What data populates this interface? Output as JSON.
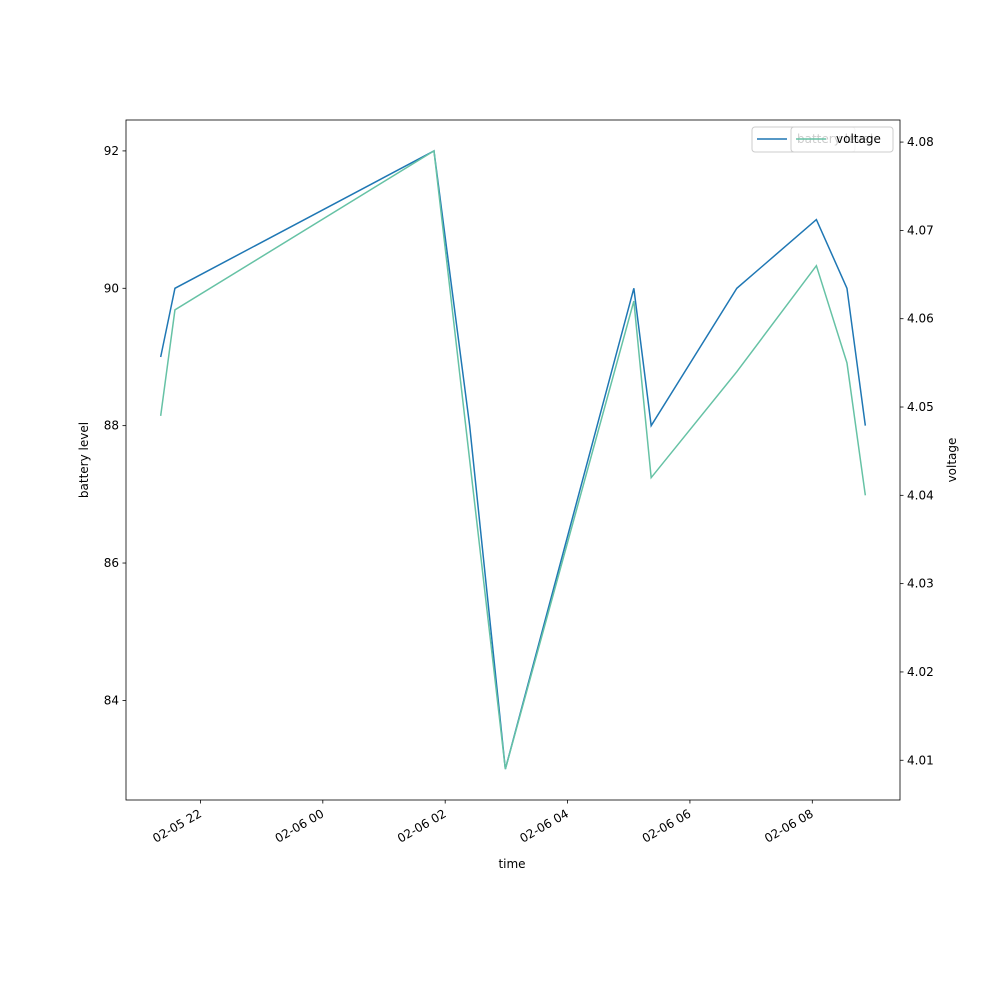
{
  "chart_data": {
    "type": "line",
    "xlabel": "time",
    "ylabel": "battery level",
    "y2label": "voltage",
    "x": [
      "02-05 21:21",
      "02-05 21:35",
      "02-06 01:49",
      "02-06 02:24",
      "02-06 02:59",
      "02-06 05:05",
      "02-06 05:22",
      "02-06 06:46",
      "02-06 08:04",
      "02-06 08:34",
      "02-06 08:52"
    ],
    "series": [
      {
        "name": "battery level",
        "color": "#1f77b4",
        "values": [
          89,
          90,
          92,
          88,
          83,
          90,
          88,
          90,
          91,
          90,
          88
        ]
      },
      {
        "name": "voltage",
        "color": "#66c2a5",
        "axis": "y2",
        "values": [
          4.049,
          4.061,
          4.079,
          4.044,
          4.009,
          4.062,
          4.042,
          4.054,
          4.066,
          4.055,
          4.04
        ]
      }
    ],
    "xlim": [
      "02-05 20:47",
      "02-06 09:26"
    ],
    "xticks": [
      {
        "value": "02-05 22:00",
        "label": "02-05 22"
      },
      {
        "value": "02-06 00:00",
        "label": "02-06 00"
      },
      {
        "value": "02-06 02:00",
        "label": "02-06 02"
      },
      {
        "value": "02-06 04:00",
        "label": "02-06 04"
      },
      {
        "value": "02-06 06:00",
        "label": "02-06 06"
      },
      {
        "value": "02-06 08:00",
        "label": "02-06 08"
      }
    ],
    "ylim": [
      82.55,
      92.45
    ],
    "yticks": [
      84,
      86,
      88,
      90,
      92
    ],
    "y2lim": [
      4.0055,
      4.0825
    ],
    "y2ticks": [
      4.01,
      4.02,
      4.03,
      4.04,
      4.05,
      4.06,
      4.07,
      4.08
    ],
    "legend": "upper right"
  }
}
